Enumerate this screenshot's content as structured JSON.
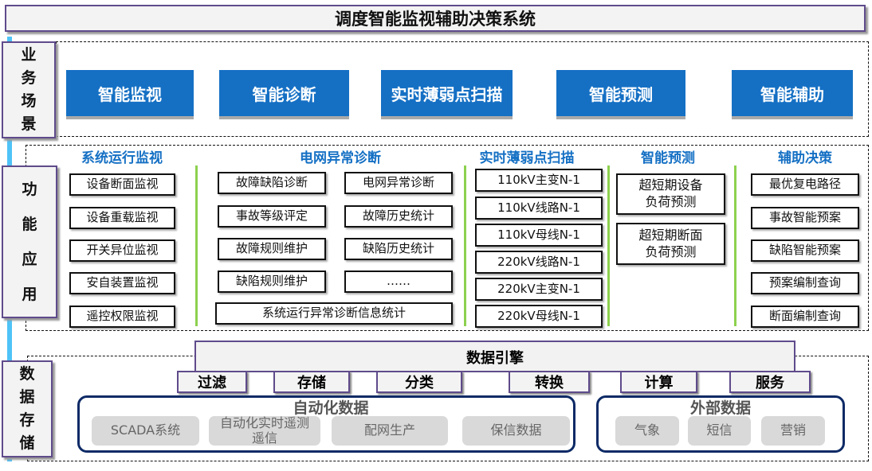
{
  "title": "调度智能监视辅助决策系统",
  "layers": {
    "business": "业务场景",
    "function": "功能应用",
    "data": "数据存储"
  },
  "business_buttons": [
    "智能监视",
    "智能诊断",
    "实时薄弱点扫描",
    "智能预测",
    "智能辅助"
  ],
  "columns": [
    {
      "header": "系统运行监视",
      "items": [
        "设备断面监视",
        "设备重载监视",
        "开关异位监视",
        "安自装置监视",
        "遥控权限监视"
      ]
    },
    {
      "header": "电网异常诊断",
      "items": [
        "故障缺陷诊断",
        "电网异常诊断",
        "事故等级评定",
        "故障历史统计",
        "故障规则维护",
        "缺陷历史统计",
        "缺陷规则维护",
        "……",
        "系统运行异常诊断信息统计"
      ]
    },
    {
      "header": "实时薄弱点扫描",
      "items": [
        "110kV主变N-1",
        "110kV线路N-1",
        "110kV母线N-1",
        "220kV线路N-1",
        "220kV主变N-1",
        "220kV母线N-1"
      ]
    },
    {
      "header": "智能预测",
      "items": [
        "超短期设备负荷预测",
        "超短期断面负荷预测"
      ]
    },
    {
      "header": "辅助决策",
      "items": [
        "最优复电路径",
        "事故智能预案",
        "缺陷智能预案",
        "预案编制查询",
        "断面编制查询"
      ]
    }
  ],
  "engine": {
    "label": "数据引擎",
    "ops": [
      "过滤",
      "存储",
      "分类",
      "转换",
      "计算",
      "服务"
    ]
  },
  "auto_data": {
    "label": "自动化数据",
    "items": [
      "SCADA系统",
      "自动化实时遥测遥信",
      "配网生产",
      "保信数据"
    ]
  },
  "external_data": {
    "label": "外部数据",
    "items": [
      "气象",
      "短信",
      "营销"
    ]
  },
  "colors": {
    "accent_blue": "#1570c4",
    "frame_purple": "#5f4b8b",
    "divider_green": "#8dd14f",
    "group_navy": "#0d2a66"
  }
}
